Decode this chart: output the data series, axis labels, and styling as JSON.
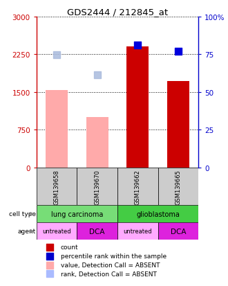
{
  "title": "GDS2444 / 212845_at",
  "samples": [
    "GSM139658",
    "GSM139670",
    "GSM139662",
    "GSM139665"
  ],
  "bar_values": [
    1540,
    1000,
    2400,
    1720
  ],
  "bar_colors": [
    "#ffaaaa",
    "#ffaaaa",
    "#cc0000",
    "#cc0000"
  ],
  "dot_values": [
    2240,
    1840,
    2430,
    2310
  ],
  "dot_style": [
    "absent",
    "absent",
    "present",
    "present"
  ],
  "ylim_left": [
    0,
    3000
  ],
  "ylim_right": [
    0,
    100
  ],
  "yticks_left": [
    0,
    750,
    1500,
    2250,
    3000
  ],
  "ytick_labels_left": [
    "0",
    "750",
    "1500",
    "2250",
    "3000"
  ],
  "yticks_right": [
    0,
    25,
    50,
    75,
    100
  ],
  "ytick_labels_right": [
    "0",
    "25",
    "50",
    "75",
    "100%"
  ],
  "cell_spans": [
    {
      "label": "lung carcinoma",
      "cols": [
        0,
        1
      ],
      "color": "#77dd77"
    },
    {
      "label": "glioblastoma",
      "cols": [
        2,
        3
      ],
      "color": "#44cc44"
    }
  ],
  "agents": [
    "untreated",
    "DCA",
    "untreated",
    "DCA"
  ],
  "agent_colors": [
    "#ffaaff",
    "#dd22dd",
    "#ffaaff",
    "#dd22dd"
  ],
  "legend_items": [
    {
      "color": "#cc0000",
      "label": "count"
    },
    {
      "color": "#0000cc",
      "label": "percentile rank within the sample"
    },
    {
      "color": "#ffaaaa",
      "label": "value, Detection Call = ABSENT"
    },
    {
      "color": "#aabbff",
      "label": "rank, Detection Call = ABSENT"
    }
  ],
  "left_axis_color": "#cc0000",
  "right_axis_color": "#0000cc",
  "background_color": "#ffffff",
  "sample_bg_color": "#cccccc"
}
